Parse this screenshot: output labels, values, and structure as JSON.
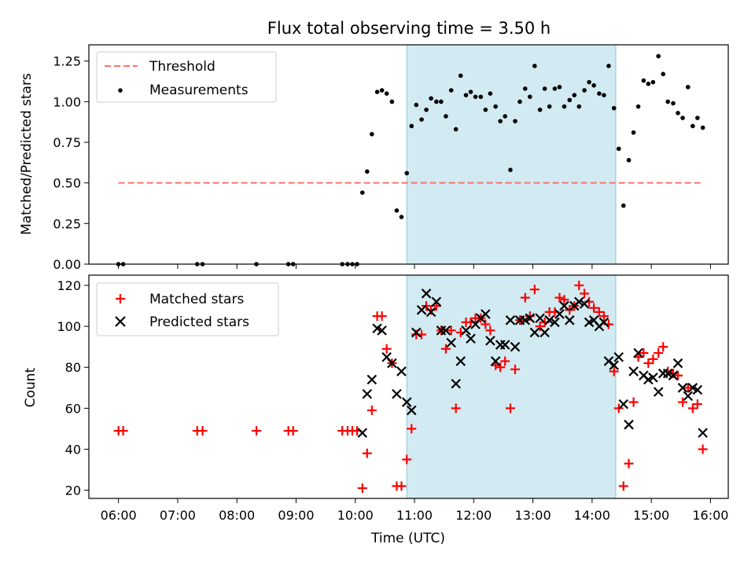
{
  "chart_data": [
    {
      "type": "scatter",
      "title": "Flux total observing time = 3.50 h",
      "xlabel": "",
      "ylabel": "Matched/Predicted stars",
      "ylim": [
        0,
        1.35
      ],
      "yticks": [
        "0.00",
        "0.25",
        "0.50",
        "0.75",
        "1.00",
        "1.25"
      ],
      "xlim_hours": [
        5.5,
        16.3
      ],
      "highlight_span_hours": [
        10.87,
        14.4
      ],
      "highlight_color": "#add8e6",
      "legend_position": "upper-left",
      "threshold": {
        "name": "Threshold",
        "value": 0.5,
        "x_range_hours": [
          6.0,
          15.83
        ],
        "color": "#ff7070",
        "style": "dashed"
      },
      "series": [
        {
          "name": "Measurements",
          "color": "#000000",
          "marker": "dot",
          "points": [
            [
              6.0,
              0
            ],
            [
              6.08,
              0
            ],
            [
              7.33,
              0
            ],
            [
              7.42,
              0
            ],
            [
              8.33,
              0
            ],
            [
              8.87,
              0
            ],
            [
              8.95,
              0
            ],
            [
              9.78,
              0
            ],
            [
              9.87,
              0
            ],
            [
              9.95,
              0
            ],
            [
              10.03,
              0
            ],
            [
              10.12,
              0.44
            ],
            [
              10.2,
              0.57
            ],
            [
              10.28,
              0.8
            ],
            [
              10.37,
              1.06
            ],
            [
              10.45,
              1.07
            ],
            [
              10.53,
              1.05
            ],
            [
              10.62,
              1.0
            ],
            [
              10.7,
              0.33
            ],
            [
              10.78,
              0.29
            ],
            [
              10.87,
              0.56
            ],
            [
              10.95,
              0.85
            ],
            [
              11.03,
              0.98
            ],
            [
              11.12,
              0.89
            ],
            [
              11.2,
              0.95
            ],
            [
              11.28,
              1.02
            ],
            [
              11.37,
              1.0
            ],
            [
              11.45,
              1.0
            ],
            [
              11.53,
              0.91
            ],
            [
              11.62,
              1.07
            ],
            [
              11.7,
              0.83
            ],
            [
              11.78,
              1.16
            ],
            [
              11.87,
              1.04
            ],
            [
              11.95,
              1.06
            ],
            [
              12.03,
              1.03
            ],
            [
              12.12,
              1.03
            ],
            [
              12.2,
              0.95
            ],
            [
              12.28,
              1.05
            ],
            [
              12.37,
              0.97
            ],
            [
              12.45,
              0.88
            ],
            [
              12.53,
              0.91
            ],
            [
              12.62,
              0.58
            ],
            [
              12.7,
              0.88
            ],
            [
              12.78,
              1.0
            ],
            [
              12.87,
              1.08
            ],
            [
              12.95,
              1.03
            ],
            [
              13.03,
              1.22
            ],
            [
              13.12,
              0.95
            ],
            [
              13.2,
              1.08
            ],
            [
              13.28,
              0.97
            ],
            [
              13.37,
              1.08
            ],
            [
              13.45,
              1.09
            ],
            [
              13.53,
              0.97
            ],
            [
              13.62,
              1.01
            ],
            [
              13.7,
              1.04
            ],
            [
              13.78,
              0.97
            ],
            [
              13.87,
              1.07
            ],
            [
              13.95,
              1.12
            ],
            [
              14.03,
              1.1
            ],
            [
              14.12,
              1.05
            ],
            [
              14.2,
              1.04
            ],
            [
              14.28,
              1.22
            ],
            [
              14.37,
              0.96
            ],
            [
              14.45,
              0.71
            ],
            [
              14.53,
              0.36
            ],
            [
              14.62,
              0.64
            ],
            [
              14.7,
              0.81
            ],
            [
              14.78,
              0.97
            ],
            [
              14.87,
              1.13
            ],
            [
              14.95,
              1.11
            ],
            [
              15.03,
              1.12
            ],
            [
              15.12,
              1.28
            ],
            [
              15.2,
              1.17
            ],
            [
              15.28,
              1.0
            ],
            [
              15.37,
              0.99
            ],
            [
              15.45,
              0.93
            ],
            [
              15.53,
              0.9
            ],
            [
              15.62,
              1.09
            ],
            [
              15.7,
              0.85
            ],
            [
              15.78,
              0.9
            ],
            [
              15.87,
              0.84
            ]
          ]
        }
      ]
    },
    {
      "type": "scatter",
      "title": "",
      "xlabel": "Time (UTC)",
      "ylabel": "Count",
      "ylim": [
        16,
        125
      ],
      "yticks": [
        "20",
        "40",
        "60",
        "80",
        "100",
        "120"
      ],
      "xlim_hours": [
        5.5,
        16.3
      ],
      "xticks": [
        "06:00",
        "07:00",
        "08:00",
        "09:00",
        "10:00",
        "11:00",
        "12:00",
        "13:00",
        "14:00",
        "15:00",
        "16:00"
      ],
      "highlight_span_hours": [
        10.87,
        14.4
      ],
      "legend_position": "upper-left",
      "series": [
        {
          "name": "Matched stars",
          "color": "#ff0000",
          "marker": "plus",
          "points": [
            [
              6.0,
              49
            ],
            [
              6.08,
              49
            ],
            [
              7.33,
              49
            ],
            [
              7.42,
              49
            ],
            [
              8.33,
              49
            ],
            [
              8.87,
              49
            ],
            [
              8.95,
              49
            ],
            [
              9.78,
              49
            ],
            [
              9.87,
              49
            ],
            [
              9.95,
              49
            ],
            [
              10.03,
              49
            ],
            [
              10.12,
              21
            ],
            [
              10.2,
              38
            ],
            [
              10.28,
              59
            ],
            [
              10.37,
              105
            ],
            [
              10.45,
              105
            ],
            [
              10.53,
              89
            ],
            [
              10.62,
              82
            ],
            [
              10.7,
              22
            ],
            [
              10.78,
              22
            ],
            [
              10.87,
              35
            ],
            [
              10.95,
              50
            ],
            [
              11.03,
              96
            ],
            [
              11.12,
              96
            ],
            [
              11.2,
              110
            ],
            [
              11.28,
              108
            ],
            [
              11.37,
              110
            ],
            [
              11.45,
              98
            ],
            [
              11.53,
              89
            ],
            [
              11.62,
              98
            ],
            [
              11.7,
              60
            ],
            [
              11.78,
              97
            ],
            [
              11.87,
              102
            ],
            [
              11.95,
              102
            ],
            [
              12.03,
              104
            ],
            [
              12.12,
              104
            ],
            [
              12.2,
              101
            ],
            [
              12.28,
              98
            ],
            [
              12.37,
              81
            ],
            [
              12.45,
              80
            ],
            [
              12.53,
              83
            ],
            [
              12.62,
              60
            ],
            [
              12.7,
              79
            ],
            [
              12.78,
              103
            ],
            [
              12.87,
              114
            ],
            [
              12.95,
              105
            ],
            [
              13.03,
              118
            ],
            [
              13.12,
              100
            ],
            [
              13.2,
              102
            ],
            [
              13.28,
              107
            ],
            [
              13.37,
              107
            ],
            [
              13.45,
              114
            ],
            [
              13.53,
              113
            ],
            [
              13.62,
              108
            ],
            [
              13.7,
              110
            ],
            [
              13.78,
              120
            ],
            [
              13.87,
              116
            ],
            [
              13.95,
              112
            ],
            [
              14.03,
              109
            ],
            [
              14.12,
              107
            ],
            [
              14.2,
              105
            ],
            [
              14.28,
              101
            ],
            [
              14.37,
              78
            ],
            [
              14.45,
              60
            ],
            [
              14.53,
              22
            ],
            [
              14.62,
              33
            ],
            [
              14.7,
              63
            ],
            [
              14.78,
              85
            ],
            [
              14.87,
              87
            ],
            [
              14.95,
              82
            ],
            [
              15.03,
              84
            ],
            [
              15.12,
              87
            ],
            [
              15.2,
              90
            ],
            [
              15.28,
              78
            ],
            [
              15.37,
              77
            ],
            [
              15.45,
              76
            ],
            [
              15.53,
              63
            ],
            [
              15.62,
              70
            ],
            [
              15.7,
              60
            ],
            [
              15.78,
              62
            ],
            [
              15.87,
              40
            ]
          ]
        },
        {
          "name": "Predicted stars",
          "color": "#000000",
          "marker": "x",
          "points": [
            [
              10.12,
              48
            ],
            [
              10.2,
              67
            ],
            [
              10.28,
              74
            ],
            [
              10.37,
              99
            ],
            [
              10.45,
              98
            ],
            [
              10.53,
              85
            ],
            [
              10.62,
              82
            ],
            [
              10.7,
              67
            ],
            [
              10.78,
              78
            ],
            [
              10.87,
              63
            ],
            [
              10.95,
              59
            ],
            [
              11.03,
              97
            ],
            [
              11.12,
              108
            ],
            [
              11.2,
              116
            ],
            [
              11.28,
              107
            ],
            [
              11.37,
              112
            ],
            [
              11.45,
              98
            ],
            [
              11.53,
              98
            ],
            [
              11.62,
              92
            ],
            [
              11.7,
              72
            ],
            [
              11.78,
              83
            ],
            [
              11.87,
              98
            ],
            [
              11.95,
              94
            ],
            [
              12.03,
              101
            ],
            [
              12.12,
              104
            ],
            [
              12.2,
              106
            ],
            [
              12.28,
              93
            ],
            [
              12.37,
              83
            ],
            [
              12.45,
              91
            ],
            [
              12.53,
              91
            ],
            [
              12.62,
              103
            ],
            [
              12.7,
              90
            ],
            [
              12.78,
              103
            ],
            [
              12.87,
              103
            ],
            [
              12.95,
              104
            ],
            [
              13.03,
              97
            ],
            [
              13.12,
              104
            ],
            [
              13.2,
              97
            ],
            [
              13.28,
              103
            ],
            [
              13.37,
              102
            ],
            [
              13.45,
              106
            ],
            [
              13.53,
              110
            ],
            [
              13.62,
              103
            ],
            [
              13.7,
              110
            ],
            [
              13.78,
              112
            ],
            [
              13.87,
              111
            ],
            [
              13.95,
              102
            ],
            [
              14.03,
              103
            ],
            [
              14.12,
              100
            ],
            [
              14.2,
              102
            ],
            [
              14.28,
              83
            ],
            [
              14.37,
              81
            ],
            [
              14.45,
              85
            ],
            [
              14.53,
              62
            ],
            [
              14.62,
              52
            ],
            [
              14.7,
              78
            ],
            [
              14.78,
              87
            ],
            [
              14.87,
              76
            ],
            [
              14.95,
              74
            ],
            [
              15.03,
              75
            ],
            [
              15.12,
              68
            ],
            [
              15.2,
              77
            ],
            [
              15.28,
              77
            ],
            [
              15.37,
              76
            ],
            [
              15.45,
              82
            ],
            [
              15.53,
              70
            ],
            [
              15.62,
              66
            ],
            [
              15.7,
              70
            ],
            [
              15.78,
              69
            ],
            [
              15.87,
              48
            ]
          ]
        }
      ]
    }
  ]
}
